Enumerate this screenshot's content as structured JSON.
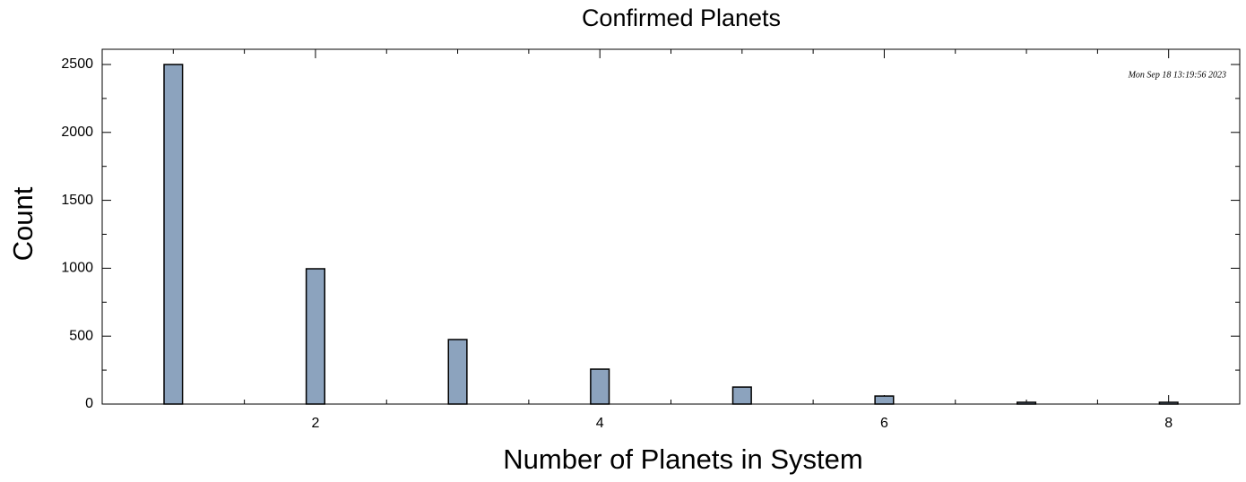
{
  "chart_data": {
    "type": "bar",
    "title": "Confirmed Planets",
    "x_label": "Number of Planets in System",
    "y_label": "Count",
    "annotation": "Mon Sep 18 13:19:56 2023",
    "x": [
      1,
      2,
      3,
      4,
      5,
      6,
      7,
      8
    ],
    "values": [
      2500,
      996,
      475,
      257,
      125,
      59,
      13,
      13
    ],
    "color": "#8ca3be",
    "xlim": [
      0.5,
      8.5
    ],
    "xticks": [
      2,
      4,
      6,
      8
    ],
    "xminorticks": [
      1,
      1.5,
      2.5,
      3,
      3.5,
      4.5,
      5,
      5.5,
      6.5,
      7,
      7.5
    ],
    "ylim": [
      0,
      2612
    ],
    "yticks": [
      0,
      500,
      1000,
      1500,
      2000,
      2500
    ],
    "yminorticks": [
      250,
      750,
      1250,
      1750,
      2250
    ]
  }
}
